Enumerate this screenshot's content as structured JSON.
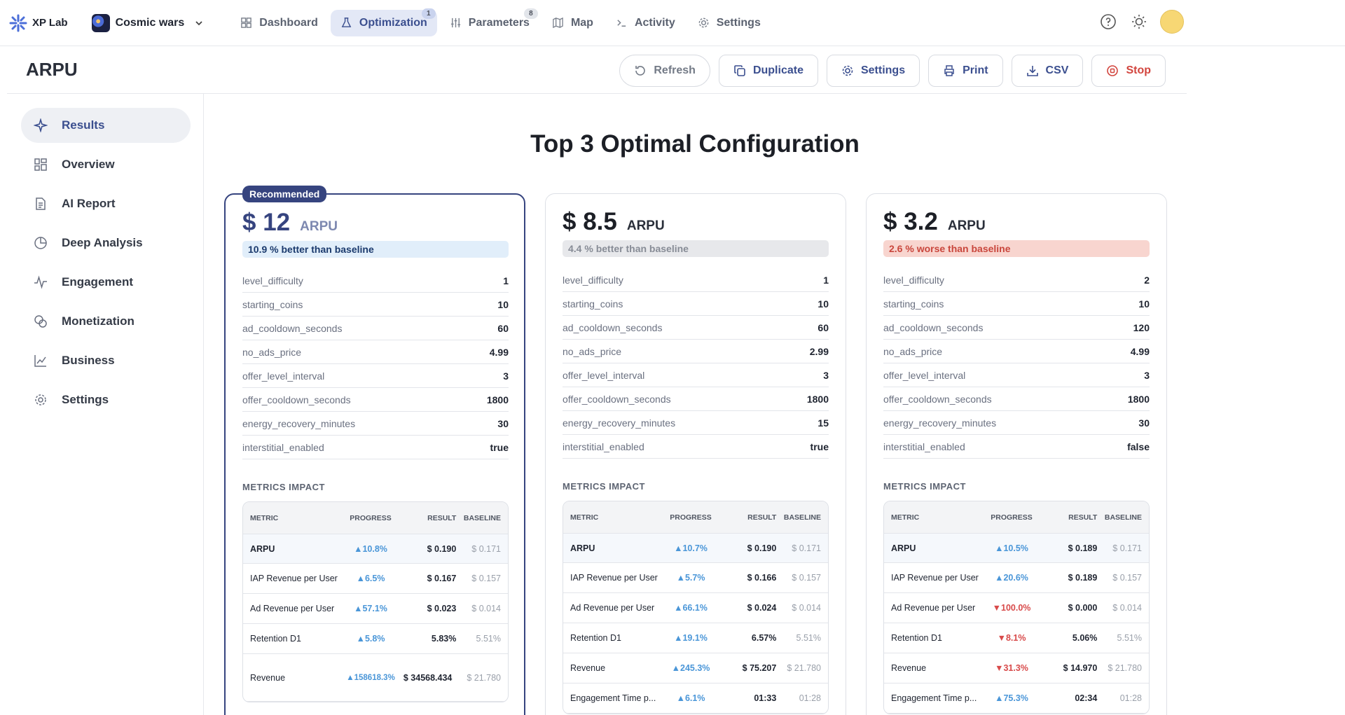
{
  "brand": {
    "name": "XP Lab"
  },
  "project": {
    "name": "Cosmic wars"
  },
  "nav": {
    "tabs": [
      {
        "label": "Dashboard",
        "icon": "dashboard-icon"
      },
      {
        "label": "Optimization",
        "icon": "flask-icon",
        "badge": "1",
        "active": true
      },
      {
        "label": "Parameters",
        "icon": "sliders-icon",
        "badge": "8"
      },
      {
        "label": "Map",
        "icon": "map-icon"
      },
      {
        "label": "Activity",
        "icon": "terminal-icon"
      },
      {
        "label": "Settings",
        "icon": "gear-icon"
      }
    ]
  },
  "page": {
    "title": "ARPU"
  },
  "actions": {
    "refresh": "Refresh",
    "duplicate": "Duplicate",
    "settings": "Settings",
    "print": "Print",
    "csv": "CSV",
    "stop": "Stop"
  },
  "sidebar": {
    "items": [
      {
        "label": "Results",
        "icon": "sparkle-icon",
        "active": true
      },
      {
        "label": "Overview",
        "icon": "grid-icon"
      },
      {
        "label": "AI Report",
        "icon": "document-icon"
      },
      {
        "label": "Deep Analysis",
        "icon": "pie-icon"
      },
      {
        "label": "Engagement",
        "icon": "pulse-icon"
      },
      {
        "label": "Monetization",
        "icon": "coins-icon"
      },
      {
        "label": "Business",
        "icon": "line-chart-icon"
      },
      {
        "label": "Settings",
        "icon": "gear-icon"
      }
    ]
  },
  "main": {
    "title": "Top 3 Optimal Configuration"
  },
  "metrics_label": "METRICS IMPACT",
  "metrics_headers": {
    "metric": "METRIC",
    "progress": "PROGRESS",
    "result": "RESULT",
    "baseline": "BASELINE"
  },
  "cards": [
    {
      "badge": "Recommended",
      "amount": "$ 12",
      "unit": "ARPU",
      "delta": "10.9 % better than baseline",
      "params": [
        {
          "name": "level_difficulty",
          "value": "1"
        },
        {
          "name": "starting_coins",
          "value": "10"
        },
        {
          "name": "ad_cooldown_seconds",
          "value": "60"
        },
        {
          "name": "no_ads_price",
          "value": "4.99"
        },
        {
          "name": "offer_level_interval",
          "value": "3"
        },
        {
          "name": "offer_cooldown_seconds",
          "value": "1800"
        },
        {
          "name": "energy_recovery_minutes",
          "value": "30"
        },
        {
          "name": "interstitial_enabled",
          "value": "true"
        }
      ],
      "metrics": [
        {
          "metric": "ARPU",
          "progress": "▲10.8%",
          "result": "$ 0.190",
          "baseline": "$ 0.171"
        },
        {
          "metric": "IAP Revenue per User",
          "progress": "▲6.5%",
          "result": "$ 0.167",
          "baseline": "$ 0.157"
        },
        {
          "metric": "Ad Revenue per User",
          "progress": "▲57.1%",
          "result": "$ 0.023",
          "baseline": "$ 0.014"
        },
        {
          "metric": "Retention D1",
          "progress": "▲5.8%",
          "result": "5.83%",
          "baseline": "5.51%"
        },
        {
          "metric": "Revenue",
          "progress": "▲158618.3%",
          "result": "$ 34568.434",
          "baseline": "$ 21.780"
        }
      ]
    },
    {
      "amount": "$ 8.5",
      "unit": "ARPU",
      "delta": "4.4 % better than baseline",
      "params": [
        {
          "name": "level_difficulty",
          "value": "1"
        },
        {
          "name": "starting_coins",
          "value": "10"
        },
        {
          "name": "ad_cooldown_seconds",
          "value": "60"
        },
        {
          "name": "no_ads_price",
          "value": "2.99"
        },
        {
          "name": "offer_level_interval",
          "value": "3"
        },
        {
          "name": "offer_cooldown_seconds",
          "value": "1800"
        },
        {
          "name": "energy_recovery_minutes",
          "value": "15"
        },
        {
          "name": "interstitial_enabled",
          "value": "true"
        }
      ],
      "metrics": [
        {
          "metric": "ARPU",
          "progress": "▲10.7%",
          "result": "$ 0.190",
          "baseline": "$ 0.171"
        },
        {
          "metric": "IAP Revenue per User",
          "progress": "▲5.7%",
          "result": "$ 0.166",
          "baseline": "$ 0.157"
        },
        {
          "metric": "Ad Revenue per User",
          "progress": "▲66.1%",
          "result": "$ 0.024",
          "baseline": "$ 0.014"
        },
        {
          "metric": "Retention D1",
          "progress": "▲19.1%",
          "result": "6.57%",
          "baseline": "5.51%"
        },
        {
          "metric": "Revenue",
          "progress": "▲245.3%",
          "result": "$ 75.207",
          "baseline": "$ 21.780"
        },
        {
          "metric": "Engagement Time p...",
          "progress": "▲6.1%",
          "result": "01:33",
          "baseline": "01:28"
        }
      ]
    },
    {
      "amount": "$ 3.2",
      "unit": "ARPU",
      "delta": "2.6 % worse than baseline",
      "params": [
        {
          "name": "level_difficulty",
          "value": "2"
        },
        {
          "name": "starting_coins",
          "value": "10"
        },
        {
          "name": "ad_cooldown_seconds",
          "value": "120"
        },
        {
          "name": "no_ads_price",
          "value": "4.99"
        },
        {
          "name": "offer_level_interval",
          "value": "3"
        },
        {
          "name": "offer_cooldown_seconds",
          "value": "1800"
        },
        {
          "name": "energy_recovery_minutes",
          "value": "30"
        },
        {
          "name": "interstitial_enabled",
          "value": "false"
        }
      ],
      "metrics": [
        {
          "metric": "ARPU",
          "progress": "▲10.5%",
          "result": "$ 0.189",
          "baseline": "$ 0.171"
        },
        {
          "metric": "IAP Revenue per User",
          "progress": "▲20.6%",
          "result": "$ 0.189",
          "baseline": "$ 0.157"
        },
        {
          "metric": "Ad Revenue per User",
          "progress": "▼100.0%",
          "result": "$ 0.000",
          "baseline": "$ 0.014"
        },
        {
          "metric": "Retention D1",
          "progress": "▼8.1%",
          "result": "5.06%",
          "baseline": "5.51%"
        },
        {
          "metric": "Revenue",
          "progress": "▼31.3%",
          "result": "$ 14.970",
          "baseline": "$ 21.780"
        },
        {
          "metric": "Engagement Time p...",
          "progress": "▲75.3%",
          "result": "02:34",
          "baseline": "01:28"
        }
      ]
    }
  ],
  "colors": {
    "accent": "#36447f",
    "up": "#4a96d8",
    "down": "#d84a4a",
    "avatar": "#f7d774"
  }
}
